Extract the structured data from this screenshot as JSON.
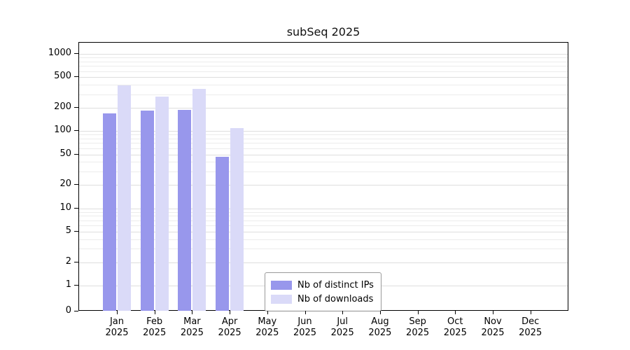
{
  "title": "subSeq 2025",
  "chart_data": {
    "type": "bar",
    "title": "subSeq 2025",
    "categories": [
      {
        "month": "Jan",
        "year": "2025"
      },
      {
        "month": "Feb",
        "year": "2025"
      },
      {
        "month": "Mar",
        "year": "2025"
      },
      {
        "month": "Apr",
        "year": "2025"
      },
      {
        "month": "May",
        "year": "2025"
      },
      {
        "month": "Jun",
        "year": "2025"
      },
      {
        "month": "Jul",
        "year": "2025"
      },
      {
        "month": "Aug",
        "year": "2025"
      },
      {
        "month": "Sep",
        "year": "2025"
      },
      {
        "month": "Oct",
        "year": "2025"
      },
      {
        "month": "Nov",
        "year": "2025"
      },
      {
        "month": "Dec",
        "year": "2025"
      }
    ],
    "series": [
      {
        "name": "Nb of distinct IPs",
        "color": "#9897ec",
        "values": [
          170,
          185,
          190,
          47,
          0,
          0,
          0,
          0,
          0,
          0,
          0,
          0
        ]
      },
      {
        "name": "Nb of downloads",
        "color": "#dadaf8",
        "values": [
          390,
          280,
          350,
          110,
          0,
          0,
          0,
          0,
          0,
          0,
          0,
          0
        ]
      }
    ],
    "y_ticks": [
      0,
      1,
      2,
      5,
      10,
      20,
      50,
      100,
      200,
      500,
      1000
    ],
    "y_scale": "log",
    "ylim": [
      0,
      1400
    ],
    "grid": "horizontal",
    "legend_position": "bottom-center-inside",
    "xlabel": "",
    "ylabel": ""
  }
}
